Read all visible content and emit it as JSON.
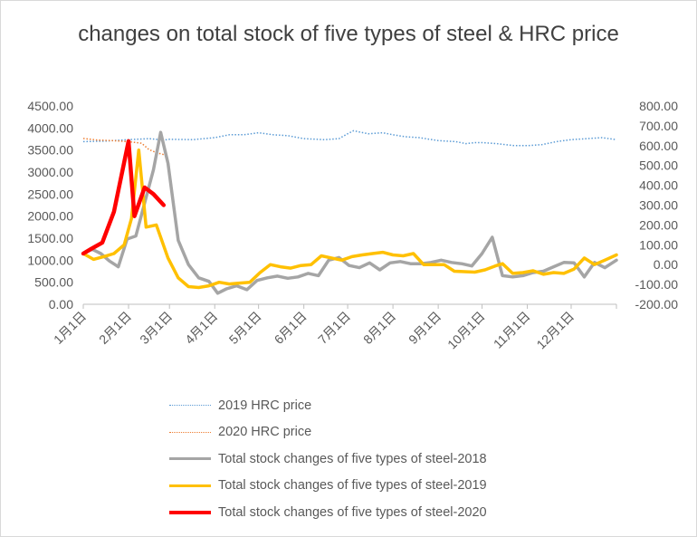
{
  "chart_data": {
    "type": "line",
    "title": "changes on total stock of five types of steel & HRC price",
    "x_ticks": [
      "1月1日",
      "2月1日",
      "3月1日",
      "4月1日",
      "5月1日",
      "6月1日",
      "7月1日",
      "8月1日",
      "9月1日",
      "10月1日",
      "11月1日",
      "12月1日"
    ],
    "x_tick_days": [
      0,
      31,
      59,
      90,
      120,
      151,
      181,
      212,
      243,
      273,
      304,
      334
    ],
    "xlim": [
      0,
      365
    ],
    "y_left_ticks": [
      "0.00",
      "500.00",
      "1000.00",
      "1500.00",
      "2000.00",
      "2500.00",
      "3000.00",
      "3500.00",
      "4000.00",
      "4500.00"
    ],
    "y_left_range": [
      0,
      4500
    ],
    "y_right_ticks": [
      "-200.00",
      "-100.00",
      "0.00",
      "100.00",
      "200.00",
      "300.00",
      "400.00",
      "500.00",
      "600.00",
      "700.00",
      "800.00"
    ],
    "y_right_range": [
      -200,
      800
    ],
    "grid": false,
    "legend_position": "bottom",
    "series": [
      {
        "name": "2019 HRC price",
        "axis": "right",
        "style": "dotted",
        "color": "#5b9bd5",
        "width": 1.5,
        "points": [
          [
            0,
            620
          ],
          [
            15,
            623
          ],
          [
            31,
            630
          ],
          [
            45,
            635
          ],
          [
            55,
            628
          ],
          [
            59,
            632
          ],
          [
            75,
            630
          ],
          [
            90,
            640
          ],
          [
            100,
            655
          ],
          [
            110,
            655
          ],
          [
            120,
            665
          ],
          [
            130,
            655
          ],
          [
            140,
            650
          ],
          [
            151,
            635
          ],
          [
            165,
            630
          ],
          [
            175,
            635
          ],
          [
            181,
            660
          ],
          [
            185,
            675
          ],
          [
            195,
            660
          ],
          [
            205,
            665
          ],
          [
            212,
            655
          ],
          [
            220,
            645
          ],
          [
            230,
            640
          ],
          [
            243,
            625
          ],
          [
            255,
            620
          ],
          [
            262,
            610
          ],
          [
            268,
            615
          ],
          [
            273,
            615
          ],
          [
            283,
            610
          ],
          [
            295,
            600
          ],
          [
            304,
            600
          ],
          [
            314,
            605
          ],
          [
            324,
            620
          ],
          [
            334,
            630
          ],
          [
            345,
            635
          ],
          [
            355,
            640
          ],
          [
            365,
            630
          ]
        ]
      },
      {
        "name": "2020 HRC price",
        "axis": "right",
        "style": "dotted",
        "color": "#ed7d31",
        "width": 1.5,
        "points": [
          [
            0,
            636
          ],
          [
            10,
            628
          ],
          [
            20,
            625
          ],
          [
            31,
            620
          ],
          [
            40,
            612
          ],
          [
            45,
            580
          ],
          [
            50,
            565
          ],
          [
            55,
            555
          ]
        ]
      },
      {
        "name": "Total stock changes of five types of steel-2018",
        "axis": "left",
        "style": "solid",
        "color": "#a5a5a5",
        "width": 3.5,
        "points": [
          [
            0,
            1150
          ],
          [
            6,
            1250
          ],
          [
            12,
            1150
          ],
          [
            18,
            980
          ],
          [
            24,
            850
          ],
          [
            30,
            1480
          ],
          [
            36,
            1550
          ],
          [
            42,
            2300
          ],
          [
            48,
            3050
          ],
          [
            53,
            3900
          ],
          [
            58,
            3200
          ],
          [
            65,
            1450
          ],
          [
            72,
            900
          ],
          [
            79,
            600
          ],
          [
            86,
            520
          ],
          [
            92,
            250
          ],
          [
            98,
            350
          ],
          [
            105,
            420
          ],
          [
            112,
            330
          ],
          [
            119,
            540
          ],
          [
            126,
            600
          ],
          [
            133,
            640
          ],
          [
            140,
            590
          ],
          [
            147,
            620
          ],
          [
            154,
            700
          ],
          [
            161,
            650
          ],
          [
            168,
            1000
          ],
          [
            175,
            1060
          ],
          [
            182,
            880
          ],
          [
            189,
            830
          ],
          [
            196,
            940
          ],
          [
            203,
            780
          ],
          [
            210,
            940
          ],
          [
            217,
            970
          ],
          [
            224,
            920
          ],
          [
            231,
            920
          ],
          [
            238,
            950
          ],
          [
            245,
            1000
          ],
          [
            252,
            950
          ],
          [
            259,
            920
          ],
          [
            266,
            870
          ],
          [
            273,
            1150
          ],
          [
            280,
            1520
          ],
          [
            287,
            650
          ],
          [
            294,
            620
          ],
          [
            301,
            650
          ],
          [
            308,
            720
          ],
          [
            315,
            750
          ],
          [
            322,
            850
          ],
          [
            329,
            950
          ],
          [
            336,
            940
          ],
          [
            343,
            620
          ],
          [
            350,
            950
          ],
          [
            357,
            830
          ],
          [
            365,
            1000
          ]
        ]
      },
      {
        "name": "Total stock changes of five types of steel-2019",
        "axis": "left",
        "style": "solid",
        "color": "#ffc000",
        "width": 3.5,
        "points": [
          [
            0,
            1150
          ],
          [
            7,
            1020
          ],
          [
            14,
            1080
          ],
          [
            21,
            1150
          ],
          [
            28,
            1350
          ],
          [
            33,
            1950
          ],
          [
            38,
            3500
          ],
          [
            43,
            1750
          ],
          [
            50,
            1800
          ],
          [
            58,
            1050
          ],
          [
            65,
            600
          ],
          [
            72,
            400
          ],
          [
            79,
            380
          ],
          [
            86,
            420
          ],
          [
            93,
            500
          ],
          [
            100,
            460
          ],
          [
            107,
            480
          ],
          [
            114,
            500
          ],
          [
            121,
            720
          ],
          [
            128,
            900
          ],
          [
            135,
            850
          ],
          [
            142,
            820
          ],
          [
            149,
            880
          ],
          [
            156,
            900
          ],
          [
            163,
            1100
          ],
          [
            170,
            1050
          ],
          [
            177,
            1000
          ],
          [
            184,
            1080
          ],
          [
            191,
            1120
          ],
          [
            198,
            1150
          ],
          [
            205,
            1180
          ],
          [
            212,
            1120
          ],
          [
            219,
            1100
          ],
          [
            226,
            1150
          ],
          [
            233,
            900
          ],
          [
            240,
            900
          ],
          [
            247,
            900
          ],
          [
            254,
            750
          ],
          [
            261,
            740
          ],
          [
            268,
            730
          ],
          [
            275,
            780
          ],
          [
            282,
            870
          ],
          [
            287,
            920
          ],
          [
            294,
            700
          ],
          [
            301,
            720
          ],
          [
            308,
            760
          ],
          [
            315,
            680
          ],
          [
            322,
            720
          ],
          [
            329,
            700
          ],
          [
            336,
            800
          ],
          [
            343,
            1050
          ],
          [
            350,
            900
          ],
          [
            357,
            1000
          ],
          [
            365,
            1120
          ]
        ]
      },
      {
        "name": "Total stock changes of five types of steel-2020",
        "axis": "left",
        "style": "solid",
        "color": "#ff0000",
        "width": 4.5,
        "points": [
          [
            0,
            1150
          ],
          [
            5,
            1250
          ],
          [
            13,
            1400
          ],
          [
            21,
            2100
          ],
          [
            31,
            3700
          ],
          [
            35,
            2000
          ],
          [
            42,
            2650
          ],
          [
            48,
            2500
          ],
          [
            55,
            2250
          ]
        ]
      }
    ]
  }
}
